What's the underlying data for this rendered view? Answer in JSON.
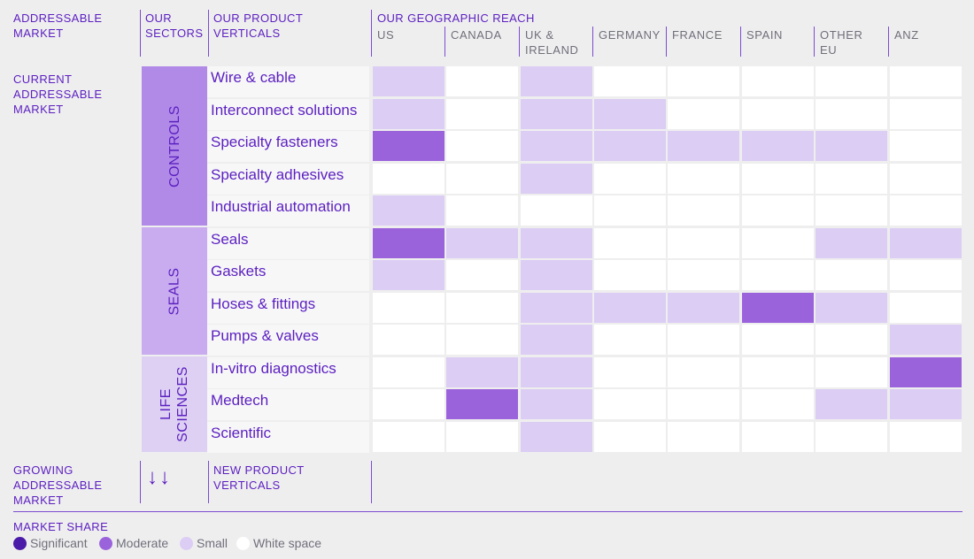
{
  "headers": {
    "addressable_market": "ADDRESSABLE\nMARKET",
    "our_sectors": "OUR\nSECTORS",
    "our_product_verticals": "OUR PRODUCT\nVERTICALS",
    "geographic_reach": "OUR GEOGRAPHIC REACH"
  },
  "countries": [
    "US",
    "CANADA",
    "UK &\nIRELAND",
    "GERMANY",
    "FRANCE",
    "SPAIN",
    "OTHER\nEU",
    "ANZ"
  ],
  "current_market_label": "CURRENT\nADDRESSABLE\nMARKET",
  "sectors": [
    {
      "name": "CONTROLS",
      "color": "#b18ae8"
    },
    {
      "name": "SEALS",
      "color": "#c9acef"
    },
    {
      "name": "LIFE\nSCIENCES",
      "color": "#ddd0f3"
    }
  ],
  "verticals": [
    {
      "label": "Wire & cable",
      "sector": "CONTROLS",
      "reach": [
        "small",
        "white",
        "small",
        "white",
        "white",
        "white",
        "white",
        "white"
      ]
    },
    {
      "label": "Interconnect solutions",
      "sector": "CONTROLS",
      "reach": [
        "small",
        "white",
        "small",
        "small",
        "white",
        "white",
        "white",
        "white"
      ]
    },
    {
      "label": "Specialty fasteners",
      "sector": "CONTROLS",
      "reach": [
        "moderate",
        "white",
        "small",
        "small",
        "small",
        "small",
        "small",
        "white"
      ]
    },
    {
      "label": "Specialty adhesives",
      "sector": "CONTROLS",
      "reach": [
        "white",
        "white",
        "small",
        "white",
        "white",
        "white",
        "white",
        "white"
      ]
    },
    {
      "label": "Industrial automation",
      "sector": "CONTROLS",
      "reach": [
        "small",
        "white",
        "white",
        "white",
        "white",
        "white",
        "white",
        "white"
      ]
    },
    {
      "label": "Seals",
      "sector": "SEALS",
      "reach": [
        "moderate",
        "small",
        "small",
        "white",
        "white",
        "white",
        "small",
        "small"
      ]
    },
    {
      "label": "Gaskets",
      "sector": "SEALS",
      "reach": [
        "small",
        "white",
        "small",
        "white",
        "white",
        "white",
        "white",
        "white"
      ]
    },
    {
      "label": "Hoses & fittings",
      "sector": "SEALS",
      "reach": [
        "white",
        "white",
        "small",
        "small",
        "small",
        "moderate",
        "small",
        "white"
      ]
    },
    {
      "label": "Pumps & valves",
      "sector": "SEALS",
      "reach": [
        "white",
        "white",
        "small",
        "white",
        "white",
        "white",
        "white",
        "small"
      ]
    },
    {
      "label": "In-vitro diagnostics",
      "sector": "LIFE SCIENCES",
      "reach": [
        "white",
        "small",
        "small",
        "white",
        "white",
        "white",
        "white",
        "moderate"
      ]
    },
    {
      "label": "Medtech",
      "sector": "LIFE SCIENCES",
      "reach": [
        "white",
        "moderate",
        "small",
        "white",
        "white",
        "white",
        "small",
        "small"
      ]
    },
    {
      "label": "Scientific",
      "sector": "LIFE SCIENCES",
      "reach": [
        "white",
        "white",
        "small",
        "white",
        "white",
        "white",
        "white",
        "white"
      ]
    }
  ],
  "growing": {
    "label": "GROWING\nADDRESSABLE\nMARKET",
    "arrows": "↓↓",
    "new_verticals": "NEW PRODUCT\nVERTICALS"
  },
  "legend": {
    "title": "MARKET SHARE",
    "items": [
      {
        "key": "significant",
        "label": "Significant",
        "color": "#4a1aa8"
      },
      {
        "key": "moderate",
        "label": "Moderate",
        "color": "#9a63dc"
      },
      {
        "key": "small",
        "label": "Small",
        "color": "#dccdf4"
      },
      {
        "key": "white",
        "label": "White space",
        "color": "#ffffff"
      }
    ]
  }
}
